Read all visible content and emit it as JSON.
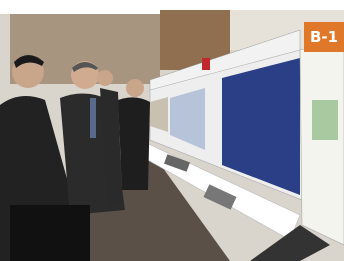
{
  "photo": {
    "sign_label": "B-1"
  }
}
